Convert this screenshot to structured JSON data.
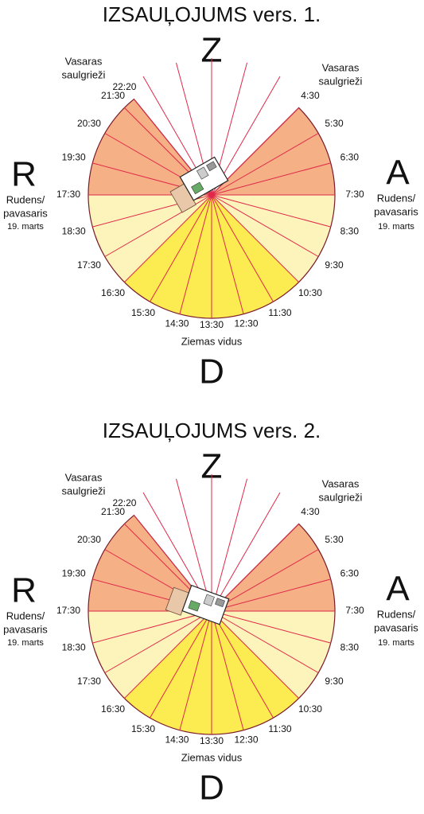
{
  "diagrams": [
    {
      "title": "IZSAUĻOJUMS vers. 1.",
      "north": "Z",
      "south": "D",
      "west": "R",
      "east": "A",
      "summer_left": [
        "Vasaras",
        "saulgrieži"
      ],
      "summer_right": [
        "Vasaras",
        "saulgrieži"
      ],
      "equinox_left": [
        "Rudens/",
        "pavasaris"
      ],
      "equinox_left_date": "19. marts",
      "equinox_right": [
        "Rudens/",
        "pavasaris"
      ],
      "equinox_right_date": "19. marts",
      "winter": "Ziemas vidus",
      "hours": [
        "4:30",
        "5:30",
        "6:30",
        "7:30",
        "8:30",
        "9:30",
        "10:30",
        "11:30",
        "12:30",
        "13:30",
        "14:30",
        "15:30",
        "16:30",
        "17:30",
        "18:30",
        "17:30",
        "19:30",
        "20:30",
        "21:30",
        "22:20"
      ]
    },
    {
      "title": "IZSAUĻOJUMS vers. 2.",
      "north": "Z",
      "south": "D",
      "west": "R",
      "east": "A",
      "summer_left": [
        "Vasaras",
        "saulgrieži"
      ],
      "summer_right": [
        "Vasaras",
        "saulgrieži"
      ],
      "equinox_left": [
        "Rudens/",
        "pavasaris"
      ],
      "equinox_left_date": "19. marts",
      "equinox_right": [
        "Rudens/",
        "pavasaris"
      ],
      "equinox_right_date": "19. marts",
      "winter": "Ziemas vidus",
      "hours": [
        "4:30",
        "5:30",
        "6:30",
        "7:30",
        "8:30",
        "9:30",
        "10:30",
        "11:30",
        "12:30",
        "13:30",
        "14:30",
        "15:30",
        "16:30",
        "17:30",
        "18:30",
        "17:30",
        "19:30",
        "20:30",
        "21:30",
        "22:20"
      ]
    }
  ]
}
